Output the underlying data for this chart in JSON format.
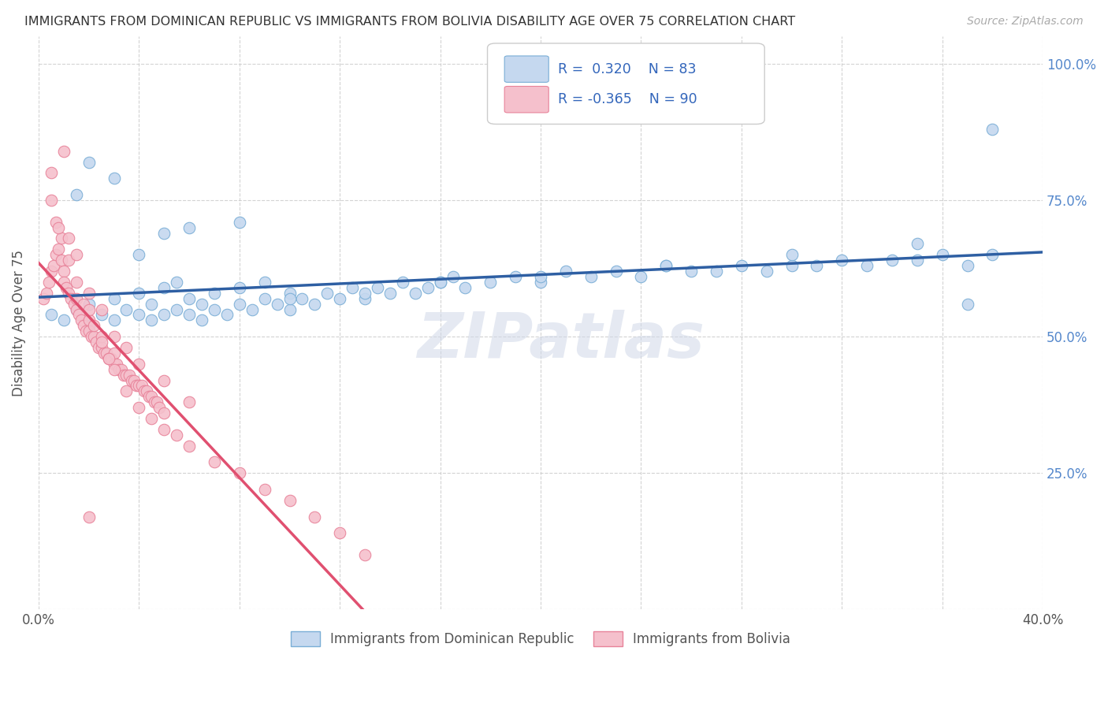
{
  "title": "IMMIGRANTS FROM DOMINICAN REPUBLIC VS IMMIGRANTS FROM BOLIVIA DISABILITY AGE OVER 75 CORRELATION CHART",
  "source": "Source: ZipAtlas.com",
  "ylabel": "Disability Age Over 75",
  "r_blue": 0.32,
  "n_blue": 83,
  "r_pink": -0.365,
  "n_pink": 90,
  "xlim": [
    0.0,
    0.4
  ],
  "ylim": [
    0.0,
    1.05
  ],
  "background_color": "#ffffff",
  "grid_color": "#c8c8c8",
  "blue_dot_face": "#c5d8ef",
  "blue_dot_edge": "#7aaed6",
  "pink_dot_face": "#f5c0cc",
  "pink_dot_edge": "#e8839a",
  "line_blue": "#2e5fa3",
  "line_pink": "#e05070",
  "line_pink_dash": "#e8a0b0",
  "watermark": "ZIPatlas",
  "right_tick_color": "#5588cc",
  "blue_scatter_x": [
    0.005,
    0.01,
    0.015,
    0.02,
    0.02,
    0.025,
    0.03,
    0.03,
    0.035,
    0.04,
    0.04,
    0.045,
    0.045,
    0.05,
    0.05,
    0.055,
    0.055,
    0.06,
    0.06,
    0.065,
    0.065,
    0.07,
    0.07,
    0.075,
    0.08,
    0.08,
    0.085,
    0.09,
    0.09,
    0.095,
    0.1,
    0.1,
    0.105,
    0.11,
    0.115,
    0.12,
    0.125,
    0.13,
    0.135,
    0.14,
    0.145,
    0.15,
    0.155,
    0.16,
    0.165,
    0.17,
    0.18,
    0.19,
    0.2,
    0.21,
    0.22,
    0.23,
    0.24,
    0.25,
    0.26,
    0.27,
    0.28,
    0.29,
    0.3,
    0.31,
    0.32,
    0.33,
    0.34,
    0.35,
    0.36,
    0.37,
    0.38,
    0.38,
    0.35,
    0.3,
    0.25,
    0.2,
    0.16,
    0.13,
    0.1,
    0.08,
    0.06,
    0.05,
    0.04,
    0.03,
    0.02,
    0.015,
    0.37
  ],
  "blue_scatter_y": [
    0.54,
    0.53,
    0.55,
    0.52,
    0.56,
    0.54,
    0.53,
    0.57,
    0.55,
    0.54,
    0.58,
    0.53,
    0.56,
    0.54,
    0.59,
    0.55,
    0.6,
    0.54,
    0.57,
    0.53,
    0.56,
    0.55,
    0.58,
    0.54,
    0.56,
    0.59,
    0.55,
    0.57,
    0.6,
    0.56,
    0.55,
    0.58,
    0.57,
    0.56,
    0.58,
    0.57,
    0.59,
    0.57,
    0.59,
    0.58,
    0.6,
    0.58,
    0.59,
    0.6,
    0.61,
    0.59,
    0.6,
    0.61,
    0.6,
    0.62,
    0.61,
    0.62,
    0.61,
    0.63,
    0.62,
    0.62,
    0.63,
    0.62,
    0.63,
    0.63,
    0.64,
    0.63,
    0.64,
    0.64,
    0.65,
    0.63,
    0.65,
    0.88,
    0.67,
    0.65,
    0.63,
    0.61,
    0.6,
    0.58,
    0.57,
    0.71,
    0.7,
    0.69,
    0.65,
    0.79,
    0.82,
    0.76,
    0.56
  ],
  "pink_scatter_x": [
    0.002,
    0.003,
    0.004,
    0.005,
    0.006,
    0.007,
    0.008,
    0.009,
    0.01,
    0.01,
    0.011,
    0.012,
    0.013,
    0.014,
    0.015,
    0.015,
    0.016,
    0.017,
    0.018,
    0.019,
    0.02,
    0.02,
    0.021,
    0.022,
    0.023,
    0.024,
    0.025,
    0.025,
    0.026,
    0.027,
    0.028,
    0.029,
    0.03,
    0.03,
    0.031,
    0.032,
    0.033,
    0.034,
    0.035,
    0.036,
    0.037,
    0.038,
    0.039,
    0.04,
    0.041,
    0.042,
    0.043,
    0.044,
    0.045,
    0.046,
    0.047,
    0.048,
    0.05,
    0.005,
    0.007,
    0.009,
    0.012,
    0.015,
    0.018,
    0.02,
    0.022,
    0.025,
    0.028,
    0.03,
    0.035,
    0.04,
    0.045,
    0.05,
    0.055,
    0.06,
    0.07,
    0.08,
    0.09,
    0.1,
    0.11,
    0.12,
    0.13,
    0.005,
    0.008,
    0.012,
    0.015,
    0.02,
    0.025,
    0.03,
    0.035,
    0.04,
    0.05,
    0.06,
    0.01,
    0.02
  ],
  "pink_scatter_y": [
    0.57,
    0.58,
    0.6,
    0.62,
    0.63,
    0.65,
    0.66,
    0.64,
    0.62,
    0.6,
    0.59,
    0.58,
    0.57,
    0.56,
    0.55,
    0.57,
    0.54,
    0.53,
    0.52,
    0.51,
    0.51,
    0.53,
    0.5,
    0.5,
    0.49,
    0.48,
    0.48,
    0.5,
    0.47,
    0.47,
    0.46,
    0.46,
    0.45,
    0.47,
    0.45,
    0.44,
    0.44,
    0.43,
    0.43,
    0.43,
    0.42,
    0.42,
    0.41,
    0.41,
    0.41,
    0.4,
    0.4,
    0.39,
    0.39,
    0.38,
    0.38,
    0.37,
    0.36,
    0.75,
    0.71,
    0.68,
    0.64,
    0.6,
    0.56,
    0.55,
    0.52,
    0.49,
    0.46,
    0.44,
    0.4,
    0.37,
    0.35,
    0.33,
    0.32,
    0.3,
    0.27,
    0.25,
    0.22,
    0.2,
    0.17,
    0.14,
    0.1,
    0.8,
    0.7,
    0.68,
    0.65,
    0.58,
    0.55,
    0.5,
    0.48,
    0.45,
    0.42,
    0.38,
    0.84,
    0.17
  ]
}
